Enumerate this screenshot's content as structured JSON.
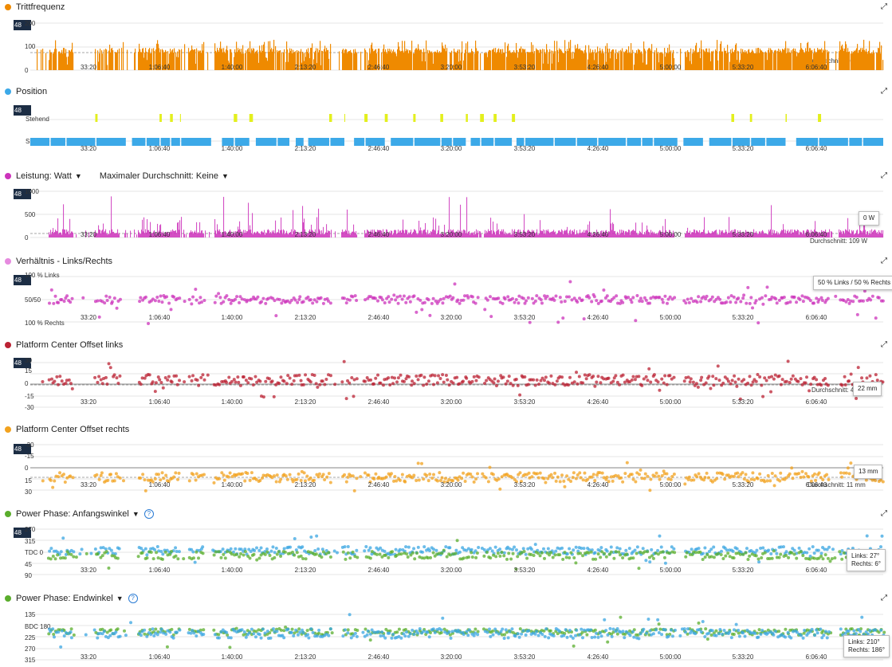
{
  "xticks": [
    "33:20",
    "1:06:40",
    "1:40:00",
    "2:13:20",
    "2:46:40",
    "3:20:00",
    "3:53:20",
    "4:26:40",
    "5:00:00",
    "5:33:20",
    "6:06:40"
  ],
  "badge": "48",
  "panels": {
    "cadence": {
      "title": "Trittfrequenz",
      "color": "#ef8a00",
      "avg_label": "Durchschnitt: 76 rpm"
    },
    "position": {
      "title": "Position",
      "color": "#3ca9e8",
      "seated_color": "#3ca9e8",
      "standing_color": "#e3ef1d"
    },
    "power": {
      "title": "Leistung: Watt",
      "subtitle": "Maximaler Durchschnitt: Keine",
      "color": "#cc33bb",
      "tooltip": "0 W",
      "avg_label": "Durchschnitt: 109 W"
    },
    "ratio": {
      "title": "Verhältnis - Links/Rechts",
      "color": "#cc33bb",
      "title_dot": "#e68adf",
      "tooltip": "50 % Links / 50 % Rechts"
    },
    "pco_left": {
      "title": "Platform Center Offset links",
      "color": "#bb2233",
      "tooltip": "22 mm",
      "avg_label": "Durchschnitt: 4"
    },
    "pco_right": {
      "title": "Platform Center Offset rechts",
      "color": "#f2a21e",
      "tooltip": "13 mm",
      "avg_label": "Durchschnitt: 11 mm"
    },
    "pp_start": {
      "title": "Power Phase: Anfangswinkel",
      "color": "#5aad2c",
      "color_right": "#3aa6e2",
      "tooltip_left": "Links: 27°",
      "tooltip_right": "Rechts: 6°"
    },
    "pp_end": {
      "title": "Power Phase: Endwinkel",
      "color": "#5aad2c",
      "color_right": "#3aa6e2",
      "tooltip_left": "Links: 210°",
      "tooltip_right": "Rechts: 186°"
    }
  },
  "chart_data": [
    {
      "type": "area",
      "title": "Trittfrequenz",
      "yticks": [
        "200",
        "100",
        "0"
      ],
      "ylim": [
        0,
        200
      ],
      "average": 76,
      "unit": "rpm",
      "x": [
        "33:20",
        "1:06:40",
        "1:40:00",
        "2:13:20",
        "2:46:40",
        "3:20:00",
        "3:53:20",
        "4:26:40",
        "5:00:00",
        "5:33:20",
        "6:06:40"
      ]
    },
    {
      "type": "bar",
      "title": "Position",
      "categories": [
        "Stehend",
        "Sitzend"
      ]
    },
    {
      "type": "area",
      "title": "Leistung: Watt",
      "yticks": [
        "1000",
        "500",
        "0"
      ],
      "ylim": [
        0,
        1000
      ],
      "average": 109,
      "unit": "W"
    },
    {
      "type": "scatter",
      "title": "Verhältnis - Links/Rechts",
      "yticks": [
        "100 % Links",
        "50/50",
        "100 % Rechts"
      ]
    },
    {
      "type": "scatter",
      "title": "Platform Center Offset links",
      "yticks": [
        "30",
        "15",
        "0",
        "-15",
        "-30"
      ],
      "ylim": [
        -30,
        30
      ],
      "unit": "mm"
    },
    {
      "type": "scatter",
      "title": "Platform Center Offset rechts",
      "yticks": [
        "-30",
        "-15",
        "0",
        "15",
        "30"
      ],
      "ylim": [
        -30,
        30
      ],
      "unit": "mm"
    },
    {
      "type": "scatter",
      "title": "Power Phase: Anfangswinkel",
      "yticks": [
        "270",
        "315",
        "TDC 0",
        "45",
        "90"
      ],
      "unit": "°",
      "series": [
        {
          "name": "Links",
          "value": 27
        },
        {
          "name": "Rechts",
          "value": 6
        }
      ]
    },
    {
      "type": "scatter",
      "title": "Power Phase: Endwinkel",
      "yticks": [
        "135",
        "BDC 180",
        "225",
        "270",
        "315"
      ],
      "unit": "°",
      "series": [
        {
          "name": "Links",
          "value": 210
        },
        {
          "name": "Rechts",
          "value": 186
        }
      ]
    }
  ]
}
